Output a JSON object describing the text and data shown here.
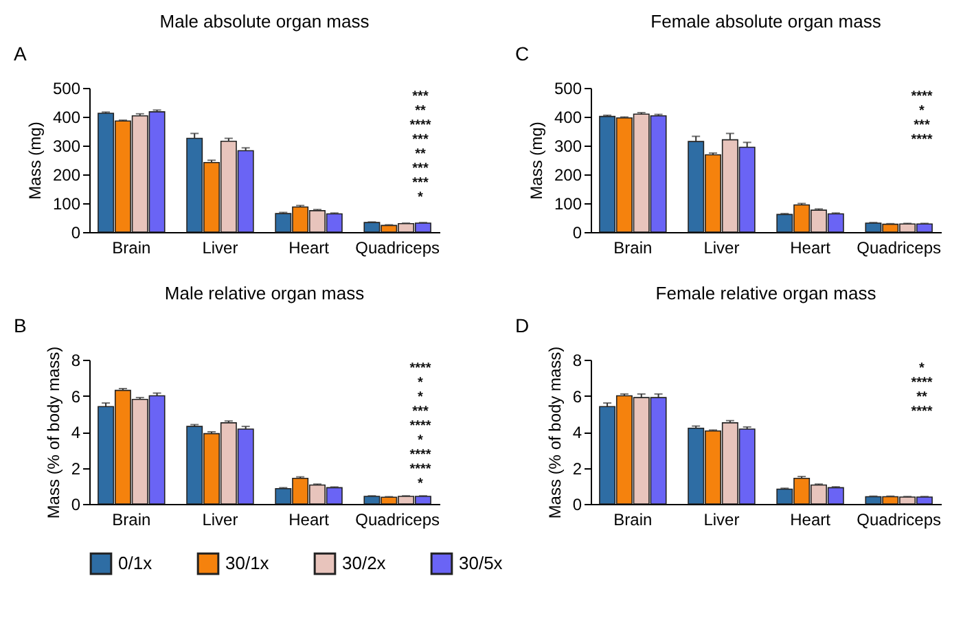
{
  "chart_data": [
    {
      "type": "bar",
      "title": "Male absolute organ mass",
      "ylabel": "Mass (mg)",
      "categories": [
        "Brain",
        "Liver",
        "Heart",
        "Quadriceps"
      ],
      "ylim": [
        0,
        500
      ],
      "yticks": [
        0,
        100,
        200,
        300,
        400,
        500
      ],
      "grid": false,
      "legend": "bottom",
      "series": [
        {
          "name": "0/1x",
          "color": "#2e6da4",
          "values": [
            412,
            325,
            64,
            33
          ],
          "errors": [
            4,
            17,
            4,
            2
          ]
        },
        {
          "name": "30/1x",
          "color": "#f5820d",
          "values": [
            385,
            241,
            87,
            23
          ],
          "errors": [
            3,
            8,
            5,
            2
          ]
        },
        {
          "name": "30/2x",
          "color": "#e8c4bc",
          "values": [
            403,
            315,
            74,
            29
          ],
          "errors": [
            7,
            10,
            4,
            2
          ]
        },
        {
          "name": "30/5x",
          "color": "#6a64f5",
          "values": [
            417,
            282,
            63,
            31
          ],
          "errors": [
            6,
            10,
            3,
            2
          ]
        }
      ],
      "annotations": [
        "A",
        "***",
        "**",
        "****",
        "***",
        "**",
        "***",
        "***",
        "*"
      ]
    },
    {
      "type": "bar",
      "title": "Female absolute organ mass",
      "ylabel": "Mass (mg)",
      "categories": [
        "Brain",
        "Liver",
        "Heart",
        "Quadriceps"
      ],
      "ylim": [
        0,
        500
      ],
      "yticks": [
        0,
        100,
        200,
        300,
        400,
        500
      ],
      "grid": false,
      "legend": "bottom",
      "series": [
        {
          "name": "0/1x",
          "color": "#2e6da4",
          "values": [
            401,
            314,
            61,
            31
          ],
          "errors": [
            4,
            18,
            3,
            2
          ]
        },
        {
          "name": "30/1x",
          "color": "#f5820d",
          "values": [
            396,
            268,
            94,
            27
          ],
          "errors": [
            3,
            6,
            5,
            2
          ]
        },
        {
          "name": "30/2x",
          "color": "#e8c4bc",
          "values": [
            409,
            320,
            76,
            28
          ],
          "errors": [
            5,
            22,
            4,
            2
          ]
        },
        {
          "name": "30/5x",
          "color": "#6a64f5",
          "values": [
            403,
            294,
            63,
            28
          ],
          "errors": [
            5,
            17,
            3,
            2
          ]
        }
      ],
      "annotations": [
        "C",
        "****",
        "*",
        "***",
        "****"
      ]
    },
    {
      "type": "bar",
      "title": "Male relative organ mass",
      "ylabel": "Mass (% of body mass)",
      "categories": [
        "Brain",
        "Liver",
        "Heart",
        "Quadriceps"
      ],
      "ylim": [
        0,
        8
      ],
      "yticks": [
        0,
        2,
        4,
        6,
        8
      ],
      "grid": false,
      "legend": "bottom",
      "series": [
        {
          "name": "0/1x",
          "color": "#2e6da4",
          "values": [
            5.4,
            4.3,
            0.85,
            0.42
          ],
          "errors": [
            0.2,
            0.1,
            0.05,
            0.03
          ]
        },
        {
          "name": "30/1x",
          "color": "#f5820d",
          "values": [
            6.3,
            3.9,
            1.42,
            0.37
          ],
          "errors": [
            0.1,
            0.1,
            0.08,
            0.03
          ]
        },
        {
          "name": "30/2x",
          "color": "#e8c4bc",
          "values": [
            5.8,
            4.5,
            1.05,
            0.42
          ],
          "errors": [
            0.1,
            0.1,
            0.05,
            0.03
          ]
        },
        {
          "name": "30/5x",
          "color": "#6a64f5",
          "values": [
            6.0,
            4.15,
            0.9,
            0.42
          ],
          "errors": [
            0.15,
            0.15,
            0.04,
            0.03
          ]
        }
      ],
      "annotations": [
        "B",
        "****",
        "*",
        "*",
        "***",
        "****",
        "*",
        "****",
        "****",
        "*"
      ]
    },
    {
      "type": "bar",
      "title": "Female relative organ mass",
      "ylabel": "Mass (% of body mass)",
      "categories": [
        "Brain",
        "Liver",
        "Heart",
        "Quadriceps"
      ],
      "ylim": [
        0,
        8
      ],
      "yticks": [
        0,
        2,
        4,
        6,
        8
      ],
      "grid": false,
      "legend": "bottom",
      "series": [
        {
          "name": "0/1x",
          "color": "#2e6da4",
          "values": [
            5.4,
            4.2,
            0.82,
            0.4
          ],
          "errors": [
            0.2,
            0.12,
            0.05,
            0.03
          ]
        },
        {
          "name": "30/1x",
          "color": "#f5820d",
          "values": [
            6.0,
            4.05,
            1.42,
            0.4
          ],
          "errors": [
            0.1,
            0.05,
            0.1,
            0.03
          ]
        },
        {
          "name": "30/2x",
          "color": "#e8c4bc",
          "values": [
            5.9,
            4.5,
            1.05,
            0.38
          ],
          "errors": [
            0.2,
            0.12,
            0.05,
            0.03
          ]
        },
        {
          "name": "30/5x",
          "color": "#6a64f5",
          "values": [
            5.9,
            4.15,
            0.9,
            0.38
          ],
          "errors": [
            0.2,
            0.12,
            0.05,
            0.03
          ]
        }
      ],
      "annotations": [
        "D",
        "*",
        "****",
        "**",
        "****"
      ]
    }
  ]
}
